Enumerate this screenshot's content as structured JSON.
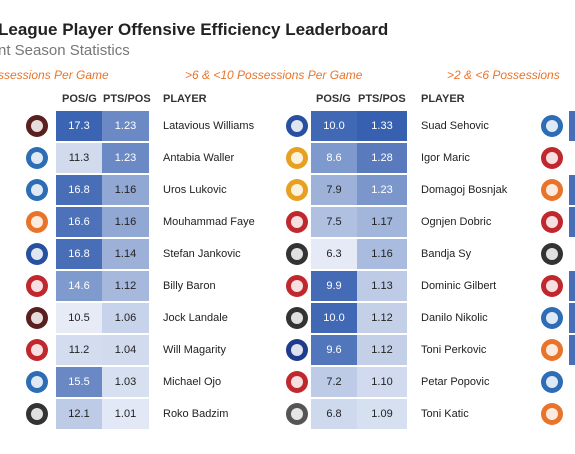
{
  "title": "League Player Offensive Efficiency Leaderboard",
  "subtitle": "nt Season Statistics",
  "columns": [
    "POS/G",
    "PTS/POS",
    "PLAYER"
  ],
  "sections": [
    {
      "label": "ssessions Per Game",
      "rows": [
        {
          "logo": "team-logo-icon",
          "logo_color": "#5a2020",
          "pos": "17.3",
          "pts": "1.23",
          "player": "Latavious Williams"
        },
        {
          "logo": "team-logo-icon",
          "logo_color": "#2c6db5",
          "pos": "11.3",
          "pts": "1.23",
          "player": "Antabia Waller"
        },
        {
          "logo": "team-logo-icon",
          "logo_color": "#2c6db5",
          "pos": "16.8",
          "pts": "1.16",
          "player": "Uros Lukovic"
        },
        {
          "logo": "team-logo-icon",
          "logo_color": "#e8742c",
          "pos": "16.6",
          "pts": "1.16",
          "player": "Mouhammad Faye"
        },
        {
          "logo": "team-logo-icon",
          "logo_color": "#2850a0",
          "pos": "16.8",
          "pts": "1.14",
          "player": "Stefan Jankovic"
        },
        {
          "logo": "team-logo-icon",
          "logo_color": "#c0282e",
          "pos": "14.6",
          "pts": "1.12",
          "player": "Billy Baron"
        },
        {
          "logo": "team-logo-icon",
          "logo_color": "#5a2020",
          "pos": "10.5",
          "pts": "1.06",
          "player": "Jock Landale"
        },
        {
          "logo": "team-logo-icon",
          "logo_color": "#c0282e",
          "pos": "11.2",
          "pts": "1.04",
          "player": "Will Magarity"
        },
        {
          "logo": "team-logo-icon",
          "logo_color": "#2c6db5",
          "pos": "15.5",
          "pts": "1.03",
          "player": "Michael Ojo"
        },
        {
          "logo": "team-logo-icon",
          "logo_color": "#333333",
          "pos": "12.1",
          "pts": "1.01",
          "player": "Roko Badzim"
        }
      ]
    },
    {
      "label": ">6 & <10 Possessions Per Game",
      "rows": [
        {
          "logo": "team-logo-icon",
          "logo_color": "#2850a0",
          "pos": "10.0",
          "pts": "1.33",
          "player": "Suad Sehovic"
        },
        {
          "logo": "team-logo-icon",
          "logo_color": "#e8a020",
          "pos": "8.6",
          "pts": "1.28",
          "player": "Igor Maric"
        },
        {
          "logo": "team-logo-icon",
          "logo_color": "#e8a020",
          "pos": "7.9",
          "pts": "1.23",
          "player": "Domagoj Bosnjak"
        },
        {
          "logo": "team-logo-icon",
          "logo_color": "#c0282e",
          "pos": "7.5",
          "pts": "1.17",
          "player": "Ognjen Dobric"
        },
        {
          "logo": "team-logo-icon",
          "logo_color": "#333333",
          "pos": "6.3",
          "pts": "1.16",
          "player": "Bandja Sy"
        },
        {
          "logo": "team-logo-icon",
          "logo_color": "#c0282e",
          "pos": "9.9",
          "pts": "1.13",
          "player": "Dominic Gilbert"
        },
        {
          "logo": "team-logo-icon",
          "logo_color": "#333333",
          "pos": "10.0",
          "pts": "1.12",
          "player": "Danilo Nikolic"
        },
        {
          "logo": "team-logo-icon",
          "logo_color": "#1f3c8c",
          "pos": "9.6",
          "pts": "1.12",
          "player": "Toni Perkovic"
        },
        {
          "logo": "team-logo-icon",
          "logo_color": "#c0282e",
          "pos": "7.2",
          "pts": "1.10",
          "player": "Petar Popovic"
        },
        {
          "logo": "team-logo-icon",
          "logo_color": "#555555",
          "pos": "6.8",
          "pts": "1.09",
          "player": "Toni Katic"
        }
      ]
    },
    {
      "label": ">2 & <6 Possessions",
      "logos": [
        {
          "logo": "team-logo-icon",
          "logo_color": "#2c6db5"
        },
        {
          "logo": "team-logo-icon",
          "logo_color": "#c0282e"
        },
        {
          "logo": "team-logo-icon",
          "logo_color": "#e8742c"
        },
        {
          "logo": "team-logo-icon",
          "logo_color": "#c0282e"
        },
        {
          "logo": "team-logo-icon",
          "logo_color": "#333333"
        },
        {
          "logo": "team-logo-icon",
          "logo_color": "#c0282e"
        },
        {
          "logo": "team-logo-icon",
          "logo_color": "#2c6db5"
        },
        {
          "logo": "team-logo-icon",
          "logo_color": "#e8742c"
        },
        {
          "logo": "team-logo-icon",
          "logo_color": "#2c6db5"
        },
        {
          "logo": "team-logo-icon",
          "logo_color": "#e8742c"
        }
      ]
    }
  ],
  "colors": {
    "scale_low": "#f2f5fb",
    "scale_high": "#2a56ab",
    "section_label": "#e8742c"
  }
}
